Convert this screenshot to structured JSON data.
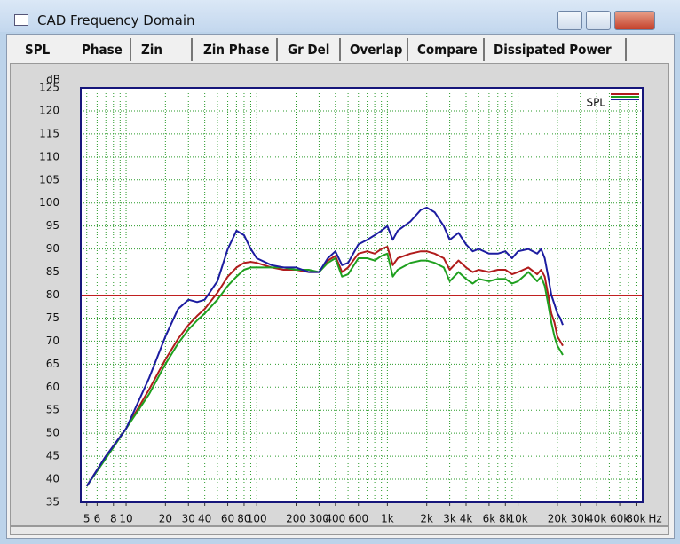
{
  "window": {
    "title": "CAD Frequency Domain"
  },
  "tabs": [
    "SPL",
    "Phase",
    "Zin",
    "Zin Phase",
    "Gr Del",
    "Overlap",
    "Compare",
    "Dissipated Power"
  ],
  "chart_data": {
    "type": "line",
    "y_label": "dB",
    "x_unit": "Hz",
    "legend_label": "SPL",
    "legend_position": "top-right",
    "xscale": "log",
    "xlim": [
      4.5,
      90000
    ],
    "ylim": [
      35,
      125
    ],
    "yticks": [
      35,
      40,
      45,
      50,
      55,
      60,
      65,
      70,
      75,
      80,
      85,
      90,
      95,
      100,
      105,
      110,
      115,
      120,
      125
    ],
    "xticks": [
      5,
      6,
      8,
      10,
      20,
      30,
      40,
      60,
      80,
      100,
      200,
      300,
      400,
      600,
      {
        "value": 1000,
        "label": "1k"
      },
      {
        "value": 2000,
        "label": "2k"
      },
      {
        "value": 3000,
        "label": "3k"
      },
      {
        "value": 4000,
        "label": "4k"
      },
      {
        "value": 6000,
        "label": "6k"
      },
      {
        "value": 8000,
        "label": "8k"
      },
      {
        "value": 10000,
        "label": "10k"
      },
      {
        "value": 20000,
        "label": "20k"
      },
      {
        "value": 30000,
        "label": "30k"
      },
      {
        "value": 40000,
        "label": "40k"
      },
      {
        "value": 60000,
        "label": "60k"
      },
      {
        "value": 80000,
        "label": "80k"
      }
    ],
    "xgrid": [
      5,
      6,
      7,
      8,
      9,
      10,
      20,
      30,
      40,
      50,
      60,
      70,
      80,
      90,
      100,
      200,
      300,
      400,
      500,
      600,
      700,
      800,
      900,
      1000,
      2000,
      3000,
      4000,
      5000,
      6000,
      7000,
      8000,
      9000,
      10000,
      20000,
      30000,
      40000,
      50000,
      60000,
      70000,
      80000,
      90000
    ],
    "grid": true,
    "grid_color": "#2a9a2a",
    "reference_line": 80,
    "reference_color": "#c02020",
    "x": [
      5,
      7,
      10,
      15,
      20,
      25,
      30,
      35,
      40,
      50,
      60,
      70,
      80,
      90,
      100,
      130,
      160,
      200,
      250,
      300,
      350,
      400,
      450,
      500,
      600,
      700,
      800,
      900,
      1000,
      1100,
      1200,
      1500,
      1800,
      2000,
      2300,
      2700,
      3000,
      3500,
      4000,
      4500,
      5000,
      6000,
      7000,
      8000,
      9000,
      10000,
      12000,
      14000,
      15000,
      16000,
      17000,
      18000,
      19000,
      20000,
      21000,
      22000
    ],
    "series": [
      {
        "color": "#b01c1c",
        "values": [
          38.5,
          45,
          51,
          59.5,
          66,
          70.5,
          73.5,
          75.5,
          77,
          80.5,
          84,
          86,
          87,
          87.2,
          87,
          86,
          85.5,
          85.5,
          85,
          85,
          87.5,
          88.5,
          85,
          86,
          89,
          89.5,
          89,
          90,
          90.5,
          86.5,
          88,
          89,
          89.5,
          89.5,
          89,
          88,
          85.5,
          87.5,
          86,
          85,
          85.5,
          85,
          85.5,
          85.5,
          84.5,
          85,
          86,
          84.5,
          85.5,
          84,
          80,
          76,
          74,
          71,
          70,
          69
        ]
      },
      {
        "color": "#1fa01f",
        "values": [
          38.5,
          44.5,
          51,
          58.5,
          65,
          69.5,
          72.5,
          74.5,
          76,
          79,
          82,
          84,
          85.5,
          86,
          86,
          86,
          86,
          85.5,
          85.5,
          85,
          87,
          88,
          84,
          84.5,
          88,
          88,
          87.5,
          88.5,
          89,
          84,
          85.5,
          87,
          87.5,
          87.5,
          87,
          86,
          83,
          85,
          83.5,
          82.5,
          83.5,
          83,
          83.5,
          83.5,
          82.5,
          83,
          85,
          83,
          84,
          82,
          78,
          74,
          71,
          69,
          68,
          67
        ]
      },
      {
        "color": "#1c1ca0",
        "values": [
          38.5,
          45,
          51,
          62,
          71,
          77,
          79,
          78.5,
          79,
          83,
          90,
          94,
          93,
          90,
          88,
          86.5,
          86,
          86,
          85,
          85,
          88,
          89.5,
          86.5,
          87,
          91,
          92,
          93,
          94,
          95,
          92,
          94,
          96,
          98.5,
          99,
          98,
          95,
          92,
          93.5,
          91,
          89.5,
          90,
          89,
          89,
          89.5,
          88,
          89.5,
          90,
          89,
          90,
          88,
          84,
          80,
          78,
          76,
          75,
          73.5
        ]
      }
    ]
  }
}
